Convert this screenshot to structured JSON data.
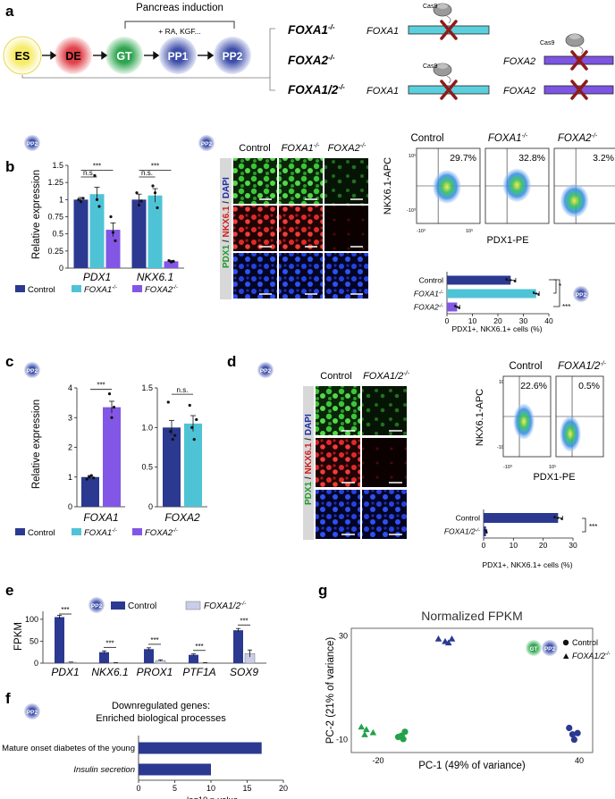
{
  "colors": {
    "control": "#2b3990",
    "foxa1": "#4fc3d6",
    "foxa2": "#8257e6",
    "foxa12": "#c9cde8",
    "es": "#f6e95a",
    "de": "#e0414a",
    "gt": "#32a852",
    "pp": "#3a4aa0",
    "knockout": "#9c1f1f",
    "gt_pts": "#23a24a",
    "pp_pts": "#2b3990"
  },
  "panel_a": {
    "letter": "a",
    "bracket_label": "Pancreas induction",
    "factors_label": "+ RA, KGF...",
    "stages": [
      "ES",
      "DE",
      "GT",
      "PP1",
      "PP2"
    ],
    "lines": [
      {
        "name": "FOXA1",
        "sup": "-/-"
      },
      {
        "name": "FOXA2",
        "sup": "-/-"
      },
      {
        "name": "FOXA1/2",
        "sup": "-/-"
      }
    ],
    "gene1": "FOXA1",
    "gene2": "FOXA2",
    "cas9": "Cas9"
  },
  "panel_b": {
    "letter": "b",
    "badge": "PP2",
    "ylabel": "Relative expression",
    "sig_labels": [
      "n.s.",
      "***",
      "n.s.",
      "***"
    ],
    "legend": [
      {
        "label": "Control",
        "sup": ""
      },
      {
        "label": "FOXA1",
        "sup": "-/-"
      },
      {
        "label": "FOXA2",
        "sup": "-/-"
      }
    ],
    "micro_cols": [
      {
        "label": "Control",
        "sup": ""
      },
      {
        "label": "FOXA1",
        "sup": "-/-"
      },
      {
        "label": "FOXA2",
        "sup": "-/-"
      }
    ],
    "micro_rows": [
      "PDX1",
      "NKX6.1",
      "DAPI"
    ],
    "flow_cols": [
      {
        "label": "Control",
        "sup": "",
        "pct": "29.7%"
      },
      {
        "label": "FOXA1",
        "sup": "-/-",
        "pct": "32.8%"
      },
      {
        "label": "FOXA2",
        "sup": "-/-",
        "pct": "3.2%"
      }
    ],
    "flow_ylabel": "NKX6.1-APC",
    "flow_xlabel": "PDX1-PE",
    "flow_ticks": [
      "10⁵",
      "-10³",
      "-10³",
      "10⁵"
    ],
    "hbar_xlabel": "PDX1+, NKX6.1+ cells (%)",
    "hbar_sig": [
      "*",
      "***"
    ],
    "hbar_badge": "PP2"
  },
  "panel_c": {
    "letter": "c",
    "badge": "PP2",
    "ylabel": "Relative expression",
    "sig_labels": [
      "***",
      "n.s."
    ],
    "legend": [
      {
        "label": "Control",
        "sup": ""
      },
      {
        "label": "FOXA1",
        "sup": "-/-"
      },
      {
        "label": "FOXA2",
        "sup": "-/-"
      }
    ]
  },
  "panel_d": {
    "letter": "d",
    "badge": "PP2",
    "micro_cols": [
      {
        "label": "Control",
        "sup": ""
      },
      {
        "label": "FOXA1/2",
        "sup": "-/-"
      }
    ],
    "micro_rows": [
      "PDX1",
      "NKX6.1",
      "DAPI"
    ],
    "flow_cols": [
      {
        "label": "Control",
        "sup": "",
        "pct": "22.6%"
      },
      {
        "label": "FOXA1/2",
        "sup": "-/-",
        "pct": "0.5%"
      }
    ],
    "flow_ylabel": "NKX6.1-APC",
    "flow_xlabel": "PDX1-PE",
    "flow_ticks": [
      "10⁵",
      "-10³",
      "-10³",
      "10⁵"
    ],
    "hbar_xlabel": "PDX1+, NKX6.1+ cells (%)",
    "hbar_sig": "***"
  },
  "panel_e": {
    "letter": "e",
    "badge": "PP2",
    "ylabel": "FPKM",
    "sig_labels": [
      "***",
      "***",
      "***",
      "***",
      "***"
    ],
    "legend": [
      {
        "label": "Control",
        "sup": ""
      },
      {
        "label": "FOXA1/2",
        "sup": "-/-"
      }
    ]
  },
  "panel_f": {
    "letter": "f",
    "badge": "PP2",
    "title1": "Downregulated genes:",
    "title2": "Enriched biological processes"
  },
  "panel_g": {
    "letter": "g",
    "badges": [
      "GT",
      "PP2"
    ],
    "legend": [
      {
        "label": "Control",
        "sup": ""
      },
      {
        "label": "FOXA1/2",
        "sup": "-/-"
      }
    ]
  },
  "chart_data": [
    {
      "id": "b_qpcr",
      "type": "bar",
      "categories": [
        "PDX1",
        "NKX6.1"
      ],
      "ylim": [
        0,
        1.5
      ],
      "yticks": [
        0,
        0.25,
        0.5,
        0.75,
        1.0,
        1.25,
        1.5
      ],
      "series": [
        {
          "name": "Control",
          "values": [
            1.0,
            1.0
          ],
          "errors": [
            0.03,
            0.08
          ],
          "points": [
            [
              1.0,
              0.97,
              1.02
            ],
            [
              1.1,
              0.92,
              0.98
            ]
          ]
        },
        {
          "name": "FOXA1-/-",
          "values": [
            1.08,
            1.06
          ],
          "errors": [
            0.1,
            0.1
          ],
          "points": [
            [
              1.35,
              1.0,
              0.9
            ],
            [
              1.2,
              1.1,
              0.88
            ]
          ]
        },
        {
          "name": "FOXA2-/-",
          "values": [
            0.56,
            0.1
          ],
          "errors": [
            0.1,
            0.01
          ],
          "points": [
            [
              0.75,
              0.52,
              0.4
            ],
            [
              0.11,
              0.09,
              0.1
            ]
          ]
        }
      ]
    },
    {
      "id": "b_hbar",
      "type": "bar",
      "orientation": "horizontal",
      "categories": [
        "Control",
        "FOXA1-/-",
        "FOXA2-/-"
      ],
      "category_sups": [
        "",
        "-/-",
        "-/-"
      ],
      "category_base": [
        "Control",
        "FOXA1",
        "FOXA2"
      ],
      "values": [
        25,
        35,
        4
      ],
      "errors": [
        2,
        1.2,
        1
      ],
      "xlim": [
        0,
        40
      ],
      "xticks": [
        0,
        10,
        20,
        30,
        40
      ]
    },
    {
      "id": "c_foxa1",
      "type": "bar",
      "categories": [
        "FOXA1"
      ],
      "ylim": [
        0,
        4
      ],
      "yticks": [
        0,
        1,
        2,
        3,
        4
      ],
      "series": [
        {
          "name": "Control",
          "values": [
            1.0
          ],
          "errors": [
            0.05
          ],
          "points": [
            [
              0.93,
              1.0,
              1.05,
              0.97
            ]
          ]
        },
        {
          "name": "FOXA2-/-",
          "values": [
            3.35
          ],
          "errors": [
            0.2
          ],
          "points": [
            [
              3.8,
              3.0,
              3.35
            ]
          ]
        }
      ]
    },
    {
      "id": "c_foxa2",
      "type": "bar",
      "categories": [
        "FOXA2"
      ],
      "ylim": [
        0,
        1.5
      ],
      "yticks": [
        0,
        0.5,
        1.0,
        1.5
      ],
      "series": [
        {
          "name": "Control",
          "values": [
            1.0
          ],
          "errors": [
            0.09
          ],
          "points": [
            [
              1.32,
              0.95,
              0.85,
              0.9
            ]
          ]
        },
        {
          "name": "FOXA1-/-",
          "values": [
            1.05
          ],
          "errors": [
            0.1
          ],
          "points": [
            [
              1.28,
              1.0,
              0.85,
              1.1
            ]
          ]
        }
      ]
    },
    {
      "id": "d_hbar",
      "type": "bar",
      "orientation": "horizontal",
      "categories": [
        "Control",
        "FOXA1/2-/-"
      ],
      "category_sups": [
        "",
        "-/-"
      ],
      "category_base": [
        "Control",
        "FOXA1/2"
      ],
      "values": [
        25,
        0.8
      ],
      "errors": [
        1.5,
        0.3
      ],
      "xlim": [
        0,
        30
      ],
      "xticks": [
        0,
        10,
        20,
        30
      ]
    },
    {
      "id": "e_fpkm",
      "type": "bar",
      "categories": [
        "PDX1",
        "NKX6.1",
        "PROX1",
        "PTF1A",
        "SOX9"
      ],
      "ylim": [
        0,
        100
      ],
      "yticks": [
        0,
        50,
        100
      ],
      "series": [
        {
          "name": "Control",
          "values": [
            105,
            25,
            32,
            19,
            75
          ],
          "errors": [
            4,
            3,
            3,
            2,
            4
          ]
        },
        {
          "name": "FOXA1/2-/-",
          "values": [
            2,
            1,
            6,
            1,
            22
          ],
          "errors": [
            0.5,
            0.3,
            1.5,
            0.3,
            8
          ]
        }
      ]
    },
    {
      "id": "f_go",
      "type": "bar",
      "orientation": "horizontal",
      "categories": [
        "Mature onset diabetes of the young",
        "Insulin secretion"
      ],
      "values": [
        17,
        10
      ],
      "xlabel": "-log10 p-value",
      "xlim": [
        0,
        20
      ],
      "xticks": [
        0,
        5,
        10,
        15,
        20
      ]
    },
    {
      "id": "g_pca",
      "type": "scatter",
      "title": "Normalized FPKM",
      "xlabel": "PC-1 (49% of variance)",
      "ylabel": "PC-2  (21% of variance)",
      "xlim": [
        -28,
        44
      ],
      "ylim": [
        -15,
        33
      ],
      "xticks": [
        -20,
        40
      ],
      "yticks": [
        -10,
        30
      ],
      "series": [
        {
          "name": "GT Control",
          "stage": "GT",
          "shape": "circle",
          "points": [
            [
              -13,
              -8.5
            ],
            [
              -12,
              -7
            ],
            [
              -14,
              -9
            ],
            [
              -12.5,
              -9.8
            ]
          ]
        },
        {
          "name": "GT FOXA1/2-/-",
          "stage": "GT",
          "shape": "triangle",
          "points": [
            [
              -25,
              -5
            ],
            [
              -23.5,
              -6
            ],
            [
              -21.5,
              -7.2
            ],
            [
              -24,
              -8
            ]
          ]
        },
        {
          "name": "PP2 Control",
          "stage": "PP2",
          "shape": "circle",
          "points": [
            [
              37,
              -5.5
            ],
            [
              38,
              -8
            ],
            [
              39.5,
              -7.5
            ],
            [
              38.5,
              -10
            ]
          ]
        },
        {
          "name": "PP2 FOXA1/2-/-",
          "stage": "PP2",
          "shape": "triangle",
          "points": [
            [
              -2,
              29
            ],
            [
              0,
              28
            ],
            [
              2,
              29
            ],
            [
              1,
              27.5
            ]
          ]
        }
      ]
    }
  ]
}
